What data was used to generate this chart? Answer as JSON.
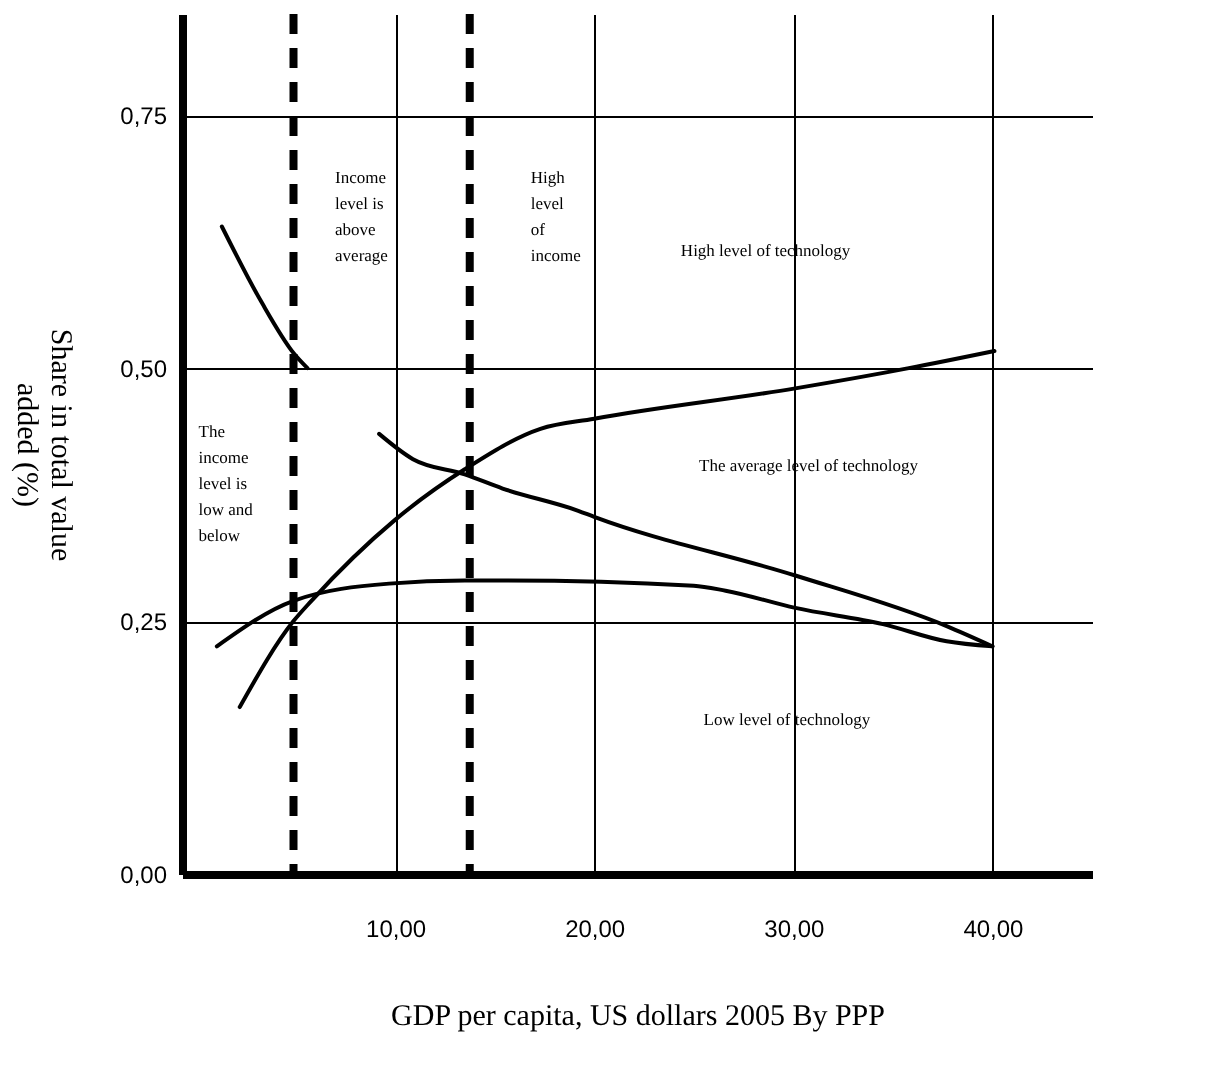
{
  "chart_data": {
    "type": "line",
    "xlabel": "GDP per capita, US dollars 2005 By PPP",
    "ylabel": "Share in total value added (%)",
    "series": [
      {
        "color": "#000000",
        "x": [
          1.3,
          3.3,
          4.9,
          5.6
        ],
        "values": [
          0.64,
          0.565,
          0.515,
          0.5
        ]
      },
      {
        "color": "#000000",
        "x": [
          2.2,
          4.9,
          5.8,
          10.0,
          13.5,
          17.3,
          20,
          30.1,
          35.8,
          40.1
        ],
        "values": [
          0.165,
          0.25,
          0.27,
          0.35,
          0.4,
          0.44,
          0.45,
          0.48,
          0.5,
          0.517
        ]
      },
      {
        "color": "#000000",
        "x": [
          9.2,
          10.9,
          13.5,
          15.4,
          19.2,
          20,
          30.1,
          37.7,
          40
        ],
        "values": [
          0.435,
          0.41,
          0.395,
          0.381,
          0.359,
          0.353,
          0.295,
          0.245,
          0.225
        ]
      },
      {
        "color": "#000000",
        "x": [
          1.05,
          4.9,
          9.7,
          13.5,
          15.4,
          25,
          26.6,
          30.1,
          34.5,
          37.7,
          40
        ],
        "values": [
          0.225,
          0.27,
          0.287,
          0.29,
          0.29,
          0.285,
          0.28,
          0.263,
          0.247,
          0.23,
          0.225
        ]
      }
    ],
    "xlim": [
      -0.7,
      45
    ],
    "ylim": [
      0,
      0.85
    ],
    "xticks": [
      {
        "value": 10,
        "label": "10,00"
      },
      {
        "value": 20,
        "label": "20,00"
      },
      {
        "value": 30,
        "label": "30,00"
      },
      {
        "value": 40,
        "label": "40,00"
      }
    ],
    "yticks": [
      {
        "value": 0,
        "label": "0,00"
      },
      {
        "value": 0.25,
        "label": "0,25"
      },
      {
        "value": 0.5,
        "label": "0,50"
      },
      {
        "value": 0.75,
        "label": "0,75"
      }
    ],
    "grid": true,
    "marker": "none",
    "line_style": "solid",
    "ref_lines": [
      {
        "axis": "x",
        "value": 4.9,
        "color": "#000000",
        "line_style": "dashed"
      },
      {
        "axis": "x",
        "value": 13.75,
        "color": "#000000",
        "line_style": "dashed"
      }
    ],
    "annotations": [
      "Income level is above average",
      "High level of income",
      "High level of technology",
      "The average level of technology",
      "Low level of technology",
      "The income level is low and below"
    ]
  }
}
